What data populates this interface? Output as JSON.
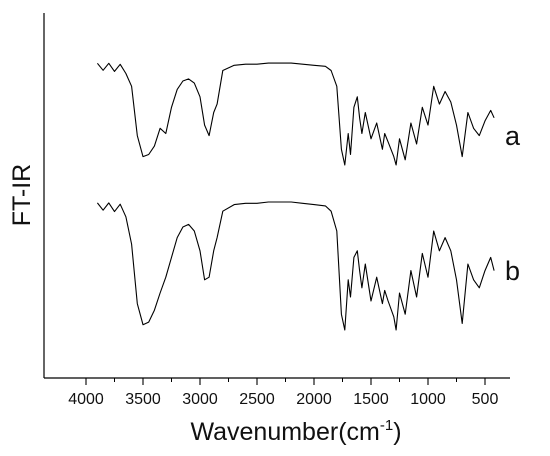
{
  "chart_data": {
    "type": "line",
    "title": "",
    "xlabel": "Wavenumber(cm",
    "xlabel_sup": "-1",
    "xlabel_close": ")",
    "ylabel": "FT-IR",
    "xlim": [
      4000,
      400
    ],
    "x_reversed": true,
    "xticks": [
      4000,
      3500,
      3000,
      2500,
      2000,
      1500,
      1000,
      500
    ],
    "grid": false,
    "legend": "none",
    "line_color": "#000000",
    "series": [
      {
        "name": "a",
        "points": [
          [
            3900,
            0.06
          ],
          [
            3850,
            0.07
          ],
          [
            3800,
            0.06
          ],
          [
            3750,
            0.08
          ],
          [
            3700,
            0.07
          ],
          [
            3650,
            0.1
          ],
          [
            3600,
            0.25
          ],
          [
            3550,
            0.72
          ],
          [
            3500,
            0.92
          ],
          [
            3450,
            0.9
          ],
          [
            3400,
            0.82
          ],
          [
            3350,
            0.65
          ],
          [
            3300,
            0.7
          ],
          [
            3250,
            0.45
          ],
          [
            3200,
            0.28
          ],
          [
            3150,
            0.2
          ],
          [
            3100,
            0.18
          ],
          [
            3050,
            0.22
          ],
          [
            3000,
            0.35
          ],
          [
            2960,
            0.62
          ],
          [
            2920,
            0.72
          ],
          [
            2880,
            0.5
          ],
          [
            2850,
            0.42
          ],
          [
            2800,
            0.1
          ],
          [
            2700,
            0.05
          ],
          [
            2600,
            0.04
          ],
          [
            2500,
            0.04
          ],
          [
            2400,
            0.03
          ],
          [
            2300,
            0.03
          ],
          [
            2200,
            0.03
          ],
          [
            2100,
            0.04
          ],
          [
            2000,
            0.05
          ],
          [
            1900,
            0.06
          ],
          [
            1850,
            0.1
          ],
          [
            1800,
            0.25
          ],
          [
            1760,
            0.85
          ],
          [
            1730,
            1.0
          ],
          [
            1700,
            0.7
          ],
          [
            1680,
            0.9
          ],
          [
            1650,
            0.45
          ],
          [
            1620,
            0.35
          ],
          [
            1600,
            0.55
          ],
          [
            1580,
            0.7
          ],
          [
            1550,
            0.5
          ],
          [
            1500,
            0.75
          ],
          [
            1450,
            0.6
          ],
          [
            1400,
            0.85
          ],
          [
            1380,
            0.7
          ],
          [
            1350,
            0.78
          ],
          [
            1300,
            0.92
          ],
          [
            1280,
            1.0
          ],
          [
            1250,
            0.75
          ],
          [
            1200,
            0.95
          ],
          [
            1150,
            0.6
          ],
          [
            1100,
            0.8
          ],
          [
            1050,
            0.45
          ],
          [
            1000,
            0.62
          ],
          [
            950,
            0.25
          ],
          [
            900,
            0.42
          ],
          [
            850,
            0.3
          ],
          [
            800,
            0.4
          ],
          [
            750,
            0.62
          ],
          [
            700,
            0.92
          ],
          [
            650,
            0.5
          ],
          [
            600,
            0.65
          ],
          [
            550,
            0.72
          ],
          [
            500,
            0.58
          ],
          [
            450,
            0.48
          ],
          [
            420,
            0.55
          ]
        ]
      },
      {
        "name": "b",
        "points": [
          [
            3900,
            0.06
          ],
          [
            3850,
            0.07
          ],
          [
            3800,
            0.06
          ],
          [
            3750,
            0.08
          ],
          [
            3700,
            0.07
          ],
          [
            3650,
            0.12
          ],
          [
            3600,
            0.35
          ],
          [
            3550,
            0.8
          ],
          [
            3500,
            0.96
          ],
          [
            3450,
            0.94
          ],
          [
            3400,
            0.85
          ],
          [
            3350,
            0.72
          ],
          [
            3300,
            0.6
          ],
          [
            3250,
            0.45
          ],
          [
            3200,
            0.3
          ],
          [
            3150,
            0.22
          ],
          [
            3100,
            0.2
          ],
          [
            3050,
            0.25
          ],
          [
            3000,
            0.4
          ],
          [
            2960,
            0.62
          ],
          [
            2920,
            0.6
          ],
          [
            2880,
            0.4
          ],
          [
            2850,
            0.3
          ],
          [
            2800,
            0.1
          ],
          [
            2700,
            0.05
          ],
          [
            2600,
            0.04
          ],
          [
            2500,
            0.04
          ],
          [
            2400,
            0.03
          ],
          [
            2300,
            0.03
          ],
          [
            2200,
            0.03
          ],
          [
            2100,
            0.04
          ],
          [
            2000,
            0.05
          ],
          [
            1900,
            0.06
          ],
          [
            1850,
            0.1
          ],
          [
            1800,
            0.25
          ],
          [
            1760,
            0.88
          ],
          [
            1730,
            1.0
          ],
          [
            1700,
            0.62
          ],
          [
            1680,
            0.75
          ],
          [
            1650,
            0.45
          ],
          [
            1620,
            0.4
          ],
          [
            1600,
            0.55
          ],
          [
            1580,
            0.68
          ],
          [
            1550,
            0.5
          ],
          [
            1500,
            0.78
          ],
          [
            1450,
            0.6
          ],
          [
            1400,
            0.8
          ],
          [
            1380,
            0.7
          ],
          [
            1350,
            0.78
          ],
          [
            1300,
            0.9
          ],
          [
            1280,
            1.0
          ],
          [
            1250,
            0.72
          ],
          [
            1200,
            0.88
          ],
          [
            1150,
            0.55
          ],
          [
            1100,
            0.75
          ],
          [
            1050,
            0.42
          ],
          [
            1000,
            0.6
          ],
          [
            950,
            0.25
          ],
          [
            900,
            0.4
          ],
          [
            850,
            0.3
          ],
          [
            800,
            0.4
          ],
          [
            750,
            0.62
          ],
          [
            700,
            0.95
          ],
          [
            650,
            0.5
          ],
          [
            600,
            0.62
          ],
          [
            550,
            0.68
          ],
          [
            500,
            0.55
          ],
          [
            450,
            0.45
          ],
          [
            420,
            0.55
          ]
        ]
      }
    ]
  }
}
